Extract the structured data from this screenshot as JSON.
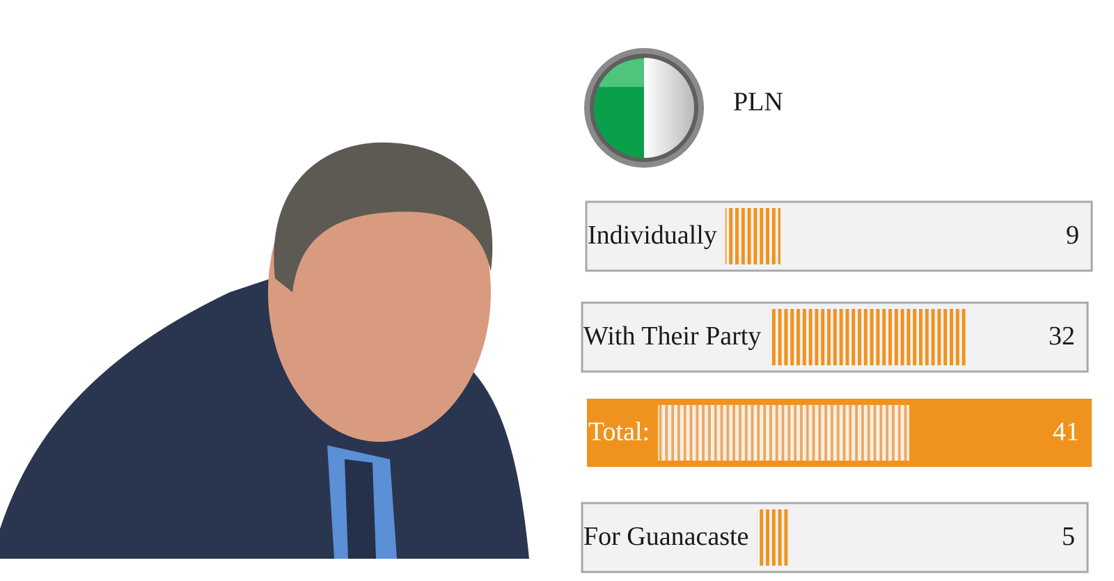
{
  "chart_data": {
    "type": "bar",
    "title": "PLN",
    "categories": [
      "Individually",
      "With Their Party",
      "Total:",
      "For Guanacaste"
    ],
    "values": [
      9,
      32,
      41,
      5
    ],
    "color": "#f0931e"
  }
}
